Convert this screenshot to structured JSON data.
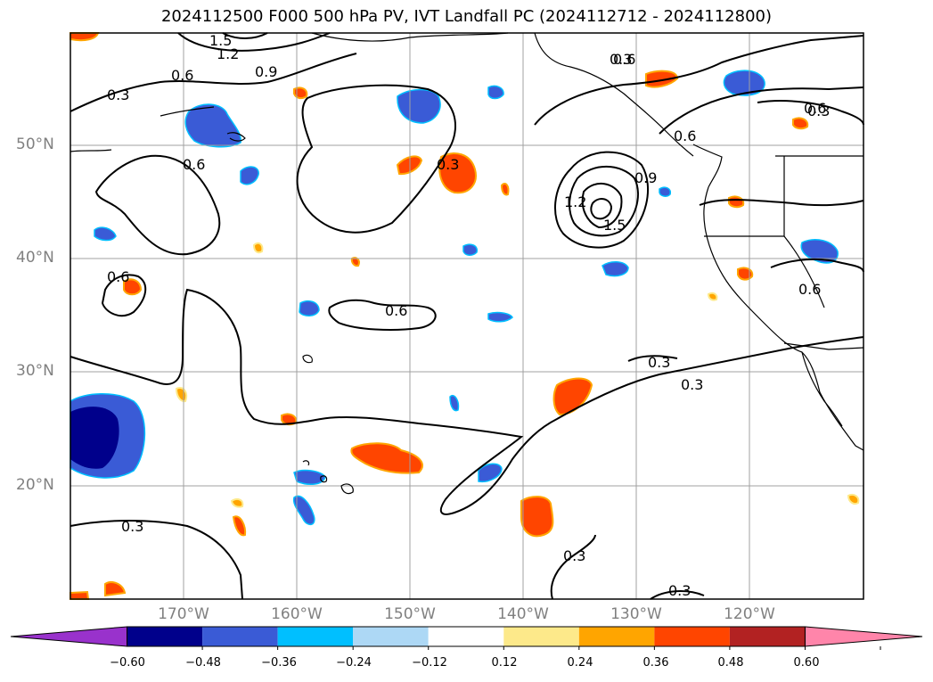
{
  "title": "2024112500 F000 500 hPa PV, IVT Landfall PC (2024112712 - 2024112800)",
  "axes": {
    "latitude_labels": [
      "50°N",
      "40°N",
      "30°N",
      "20°N"
    ],
    "longitude_labels": [
      "170°W",
      "160°W",
      "150°W",
      "140°W",
      "130°W",
      "120°W"
    ]
  },
  "contour_labels": [
    "1.5",
    "1.2",
    "0.9",
    "0.6",
    "0.3",
    "0.6",
    "0.6",
    "0.3",
    "0.6",
    "0.3",
    "1.2",
    "1.5",
    "0.9",
    "0.6",
    "0.6",
    "0.6",
    "0.6",
    "0.3",
    "0.3",
    "0.3",
    "0.3",
    "0.3",
    "0.3"
  ],
  "colorbar": {
    "ticks": [
      "−0.60",
      "−0.48",
      "−0.36",
      "−0.24",
      "−0.12",
      "0.12",
      "0.24",
      "0.36",
      "0.48",
      "0.60"
    ],
    "colors": [
      "#9932cc",
      "#00008b",
      "#3a5bd6",
      "#00bfff",
      "#add8f5",
      "#ffffff",
      "#fde98a",
      "#ffa500",
      "#ff4500",
      "#b22222",
      "#ff85aa"
    ],
    "extend": "both"
  },
  "palette": {
    "coast": "#000000",
    "contour": "#000000",
    "grid": "#a0a0a0"
  }
}
